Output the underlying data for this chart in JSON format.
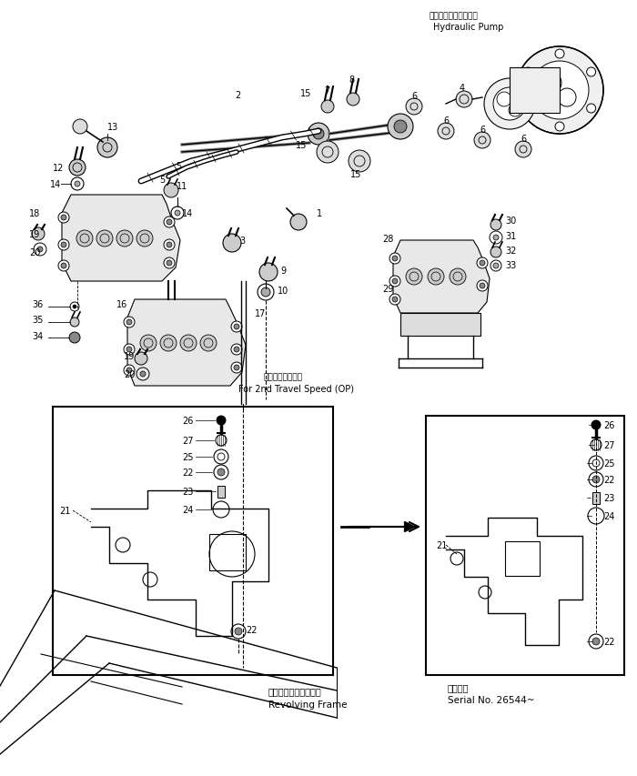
{
  "bg_color": "#ffffff",
  "line_color": "#000000",
  "title_jp": "ハイドロリックポンプ",
  "title_en": "Hydraulic Pump",
  "revolving_jp": "レボルビングフレーム",
  "revolving_en": "Revolving Frame",
  "travel_jp": "２速走行モータ用",
  "travel_en": "For 2nd Travel Speed (OP)",
  "serial_jp": "適用号機",
  "serial_en": "Serial No. 26544~",
  "fig_width": 7.0,
  "fig_height": 8.54,
  "dpi": 100
}
